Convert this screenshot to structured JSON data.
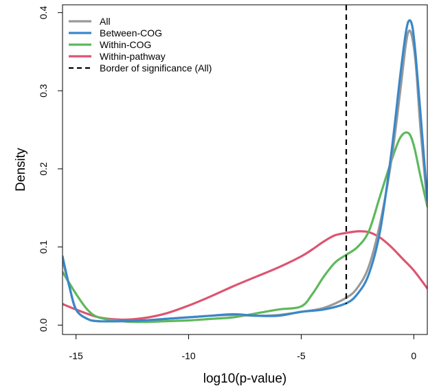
{
  "chart_data": {
    "type": "line",
    "title": "",
    "xlabel": "log10(p-value)",
    "ylabel": "Density",
    "xlim": [
      -15.6,
      0.6
    ],
    "ylim": [
      -0.012,
      0.41
    ],
    "x_ticks": [
      -15,
      -10,
      -5,
      0
    ],
    "x_tick_labels": [
      "-15",
      "-10",
      "-5",
      "0"
    ],
    "y_ticks": [
      0.0,
      0.1,
      0.2,
      0.3,
      0.4
    ],
    "y_tick_labels": [
      "0.0",
      "0.1",
      "0.2",
      "0.3",
      "0.4"
    ],
    "grid": false,
    "legend_position": "top-left",
    "reference_line": {
      "name": "Border of significance (All)",
      "x": -3.0,
      "color": "#000000",
      "style": "dashed"
    },
    "series": [
      {
        "name": "All",
        "color": "#999999",
        "points": [
          [
            -15.6,
            0.083
          ],
          [
            -15.3,
            0.05
          ],
          [
            -15.0,
            0.02
          ],
          [
            -14.5,
            0.008
          ],
          [
            -14.0,
            0.005
          ],
          [
            -13.0,
            0.005
          ],
          [
            -12.0,
            0.006
          ],
          [
            -11.0,
            0.008
          ],
          [
            -10.0,
            0.01
          ],
          [
            -9.0,
            0.012
          ],
          [
            -8.0,
            0.013
          ],
          [
            -7.0,
            0.012
          ],
          [
            -6.0,
            0.013
          ],
          [
            -5.0,
            0.017
          ],
          [
            -4.0,
            0.022
          ],
          [
            -3.0,
            0.035
          ],
          [
            -2.5,
            0.048
          ],
          [
            -2.0,
            0.075
          ],
          [
            -1.5,
            0.13
          ],
          [
            -1.0,
            0.21
          ],
          [
            -0.6,
            0.3
          ],
          [
            -0.35,
            0.36
          ],
          [
            -0.2,
            0.377
          ],
          [
            -0.05,
            0.365
          ],
          [
            0.1,
            0.33
          ],
          [
            0.3,
            0.25
          ],
          [
            0.6,
            0.155
          ]
        ]
      },
      {
        "name": "Between-COG",
        "color": "#3a87c8",
        "points": [
          [
            -15.6,
            0.088
          ],
          [
            -15.3,
            0.05
          ],
          [
            -15.0,
            0.02
          ],
          [
            -14.5,
            0.008
          ],
          [
            -14.0,
            0.005
          ],
          [
            -13.0,
            0.005
          ],
          [
            -12.0,
            0.006
          ],
          [
            -11.0,
            0.008
          ],
          [
            -10.0,
            0.01
          ],
          [
            -9.0,
            0.012
          ],
          [
            -8.0,
            0.014
          ],
          [
            -7.0,
            0.012
          ],
          [
            -6.0,
            0.012
          ],
          [
            -5.0,
            0.017
          ],
          [
            -4.0,
            0.02
          ],
          [
            -3.0,
            0.028
          ],
          [
            -2.5,
            0.04
          ],
          [
            -2.0,
            0.065
          ],
          [
            -1.5,
            0.12
          ],
          [
            -1.0,
            0.22
          ],
          [
            -0.6,
            0.32
          ],
          [
            -0.35,
            0.375
          ],
          [
            -0.2,
            0.39
          ],
          [
            -0.05,
            0.38
          ],
          [
            0.1,
            0.34
          ],
          [
            0.3,
            0.27
          ],
          [
            0.6,
            0.16
          ]
        ]
      },
      {
        "name": "Within-COG",
        "color": "#5db85c",
        "points": [
          [
            -15.6,
            0.068
          ],
          [
            -15.0,
            0.04
          ],
          [
            -14.5,
            0.02
          ],
          [
            -14.0,
            0.01
          ],
          [
            -13.0,
            0.005
          ],
          [
            -12.0,
            0.004
          ],
          [
            -11.0,
            0.005
          ],
          [
            -10.0,
            0.006
          ],
          [
            -9.0,
            0.008
          ],
          [
            -8.0,
            0.01
          ],
          [
            -7.0,
            0.015
          ],
          [
            -6.0,
            0.02
          ],
          [
            -5.0,
            0.024
          ],
          [
            -4.5,
            0.04
          ],
          [
            -4.0,
            0.062
          ],
          [
            -3.5,
            0.08
          ],
          [
            -3.0,
            0.09
          ],
          [
            -2.5,
            0.1
          ],
          [
            -2.0,
            0.12
          ],
          [
            -1.5,
            0.165
          ],
          [
            -1.0,
            0.21
          ],
          [
            -0.6,
            0.24
          ],
          [
            -0.25,
            0.246
          ],
          [
            0.0,
            0.23
          ],
          [
            0.3,
            0.19
          ],
          [
            0.6,
            0.152
          ]
        ]
      },
      {
        "name": "Within-pathway",
        "color": "#dc5570",
        "points": [
          [
            -15.6,
            0.027
          ],
          [
            -15.0,
            0.02
          ],
          [
            -14.0,
            0.01
          ],
          [
            -13.0,
            0.007
          ],
          [
            -12.0,
            0.009
          ],
          [
            -11.0,
            0.015
          ],
          [
            -10.0,
            0.025
          ],
          [
            -9.0,
            0.037
          ],
          [
            -8.0,
            0.05
          ],
          [
            -7.0,
            0.062
          ],
          [
            -6.0,
            0.074
          ],
          [
            -5.0,
            0.088
          ],
          [
            -4.5,
            0.097
          ],
          [
            -4.0,
            0.107
          ],
          [
            -3.5,
            0.115
          ],
          [
            -3.0,
            0.118
          ],
          [
            -2.5,
            0.12
          ],
          [
            -2.0,
            0.119
          ],
          [
            -1.5,
            0.112
          ],
          [
            -1.0,
            0.1
          ],
          [
            -0.5,
            0.085
          ],
          [
            0.0,
            0.07
          ],
          [
            0.6,
            0.047
          ]
        ]
      }
    ]
  },
  "legend": {
    "items": [
      {
        "name": "All",
        "color": "#999999",
        "style": "solid"
      },
      {
        "name": "Between-COG",
        "color": "#3a87c8",
        "style": "solid"
      },
      {
        "name": "Within-COG",
        "color": "#5db85c",
        "style": "solid"
      },
      {
        "name": "Within-pathway",
        "color": "#dc5570",
        "style": "solid"
      },
      {
        "name": "Border of significance (All)",
        "color": "#000000",
        "style": "dashed"
      }
    ]
  }
}
